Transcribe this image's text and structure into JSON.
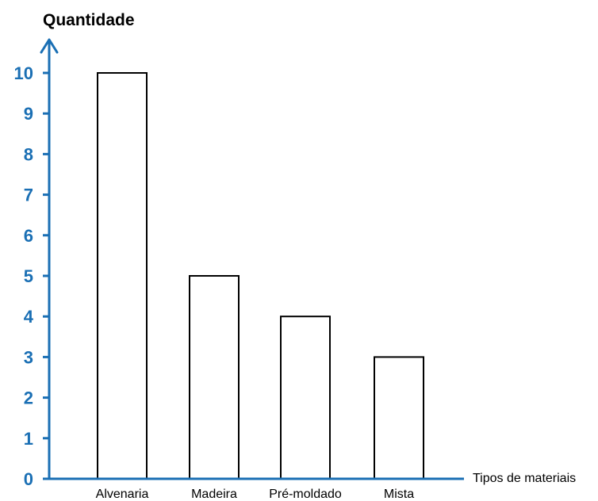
{
  "chart_data": {
    "type": "bar",
    "title": "",
    "ylabel": "Quantidade",
    "xlabel": "Tipos de materiais",
    "categories": [
      "Alvenaria",
      "Madeira",
      "Pré-moldado",
      "Mista"
    ],
    "values": [
      10,
      5,
      4,
      3
    ],
    "ylim": [
      0,
      10
    ],
    "yticks": [
      0,
      1,
      2,
      3,
      4,
      5,
      6,
      7,
      8,
      9,
      10
    ],
    "grid": false,
    "legend": "none",
    "colors": {
      "axis": "#1a6fb4",
      "tick_label": "#1a6fb4",
      "bar_fill": "#ffffff",
      "bar_stroke": "#000000",
      "text": "#000000"
    }
  }
}
